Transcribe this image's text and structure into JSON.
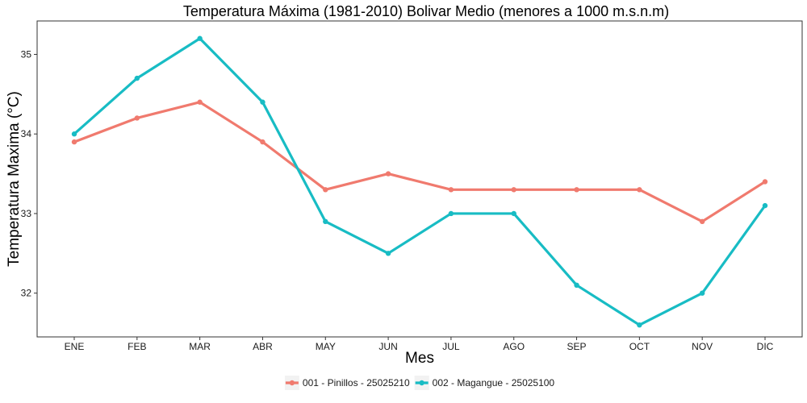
{
  "chart_data": {
    "type": "line",
    "title": "Temperatura Máxima (1981-2010) Bolivar Medio (menores a 1000 m.s.n.m)",
    "xlabel": "Mes",
    "ylabel": "Temperatura Maxima (°C)",
    "categories": [
      "ENE",
      "FEB",
      "MAR",
      "ABR",
      "MAY",
      "JUN",
      "JUL",
      "AGO",
      "SEP",
      "OCT",
      "NOV",
      "DIC"
    ],
    "yticks": [
      32,
      33,
      34,
      35
    ],
    "ylim": [
      31.45,
      35.42
    ],
    "grid": false,
    "legend_position": "bottom",
    "series": [
      {
        "name": "001 - Pinillos - 25025210",
        "color": "#F07A6E",
        "values": [
          33.9,
          34.2,
          34.4,
          33.9,
          33.3,
          33.5,
          33.3,
          33.3,
          33.3,
          33.3,
          32.9,
          33.4
        ]
      },
      {
        "name": "002 - Magangue - 25025100",
        "color": "#18BCC4",
        "values": [
          34.0,
          34.7,
          35.2,
          34.4,
          32.9,
          32.5,
          33.0,
          33.0,
          32.1,
          31.6,
          32.0,
          33.1
        ]
      }
    ]
  }
}
